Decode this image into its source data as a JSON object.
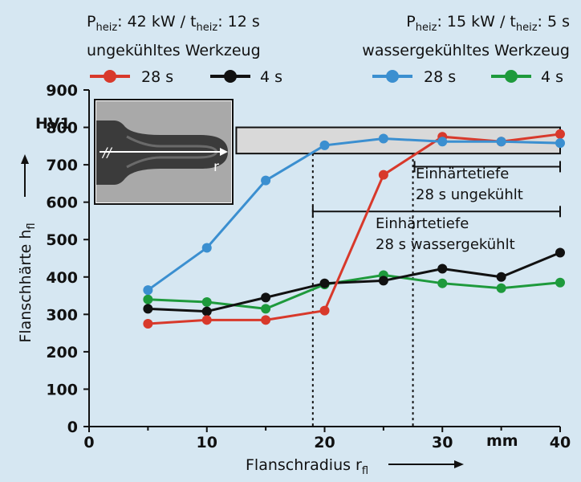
{
  "chart_data": {
    "type": "line",
    "ylabel_main": "Flanschhärte h",
    "ylabel_sub": "fl",
    "ylabel_unit": "HV1",
    "xlabel_main": "Flanschradius r",
    "xlabel_sub": "fl",
    "x_unit_label": "mm",
    "xlim": [
      0,
      40
    ],
    "ylim": [
      0,
      900
    ],
    "xticks": [
      0,
      10,
      20,
      30,
      40
    ],
    "yticks": [
      0,
      100,
      200,
      300,
      400,
      500,
      600,
      700,
      800,
      900
    ],
    "left_group": {
      "power_prefix": "P",
      "power_sub": "heiz",
      "power_value": ": 42 kW / t",
      "time_sub": "heiz",
      "time_value": ": 12 s",
      "label": "ungekühltes Werkzeug"
    },
    "right_group": {
      "power_prefix": "P",
      "power_sub": "heiz",
      "power_value": ": 15 kW / t",
      "time_sub": "heiz",
      "time_value": ": 5 s",
      "label": "wassergekühltes Werkzeug"
    },
    "series": [
      {
        "name": "28 s",
        "color": "#d8392b",
        "x": [
          5,
          10,
          15,
          20,
          25,
          30,
          35,
          40
        ],
        "y": [
          275,
          285,
          285,
          310,
          673,
          775,
          762,
          782
        ]
      },
      {
        "name": "4 s",
        "color": "#111111",
        "x": [
          5,
          10,
          15,
          20,
          25,
          30,
          35,
          40
        ],
        "y": [
          315,
          308,
          345,
          383,
          390,
          422,
          400,
          465
        ]
      },
      {
        "name": "28 s",
        "color": "#3b8fd0",
        "x": [
          5,
          10,
          15,
          20,
          25,
          30,
          35,
          40
        ],
        "y": [
          365,
          478,
          658,
          752,
          770,
          762,
          762,
          758
        ]
      },
      {
        "name": "4 s",
        "color": "#1e9a3c",
        "x": [
          5,
          10,
          15,
          20,
          25,
          30,
          35,
          40
        ],
        "y": [
          340,
          333,
          315,
          380,
          405,
          383,
          370,
          385
        ]
      }
    ],
    "annotations": [
      {
        "line1": "Einhärtetiefe",
        "line2": "28 s ungekühlt",
        "x_start": 27.5,
        "x_end": 40
      },
      {
        "line1": "Einhärtetiefe",
        "line2": "28 s wassergekühlt",
        "x_start": 19,
        "x_end": 40
      }
    ],
    "inset_label": "r",
    "band_y": [
      730,
      800
    ],
    "band_x": [
      12.5,
      40
    ],
    "grid": false
  }
}
